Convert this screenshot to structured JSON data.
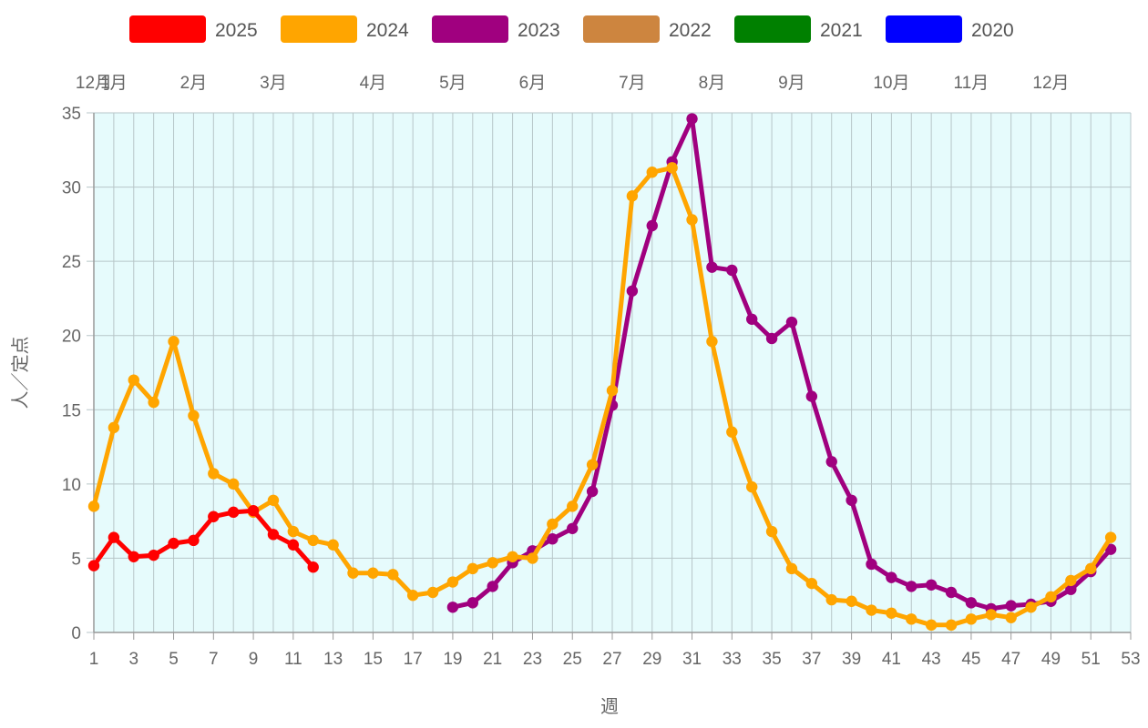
{
  "chart_data": {
    "type": "line",
    "xlabel": "週",
    "ylabel": "人／定点",
    "xlim": [
      1,
      53
    ],
    "ylim": [
      0,
      35
    ],
    "x_ticks": [
      1,
      3,
      5,
      7,
      9,
      11,
      13,
      15,
      17,
      19,
      21,
      23,
      25,
      27,
      29,
      31,
      33,
      35,
      37,
      39,
      41,
      43,
      45,
      47,
      49,
      51,
      53
    ],
    "y_ticks": [
      0,
      5,
      10,
      15,
      20,
      25,
      30,
      35
    ],
    "month_labels": [
      {
        "label": "12月",
        "week": 1
      },
      {
        "label": "1月",
        "week": 2
      },
      {
        "label": "2月",
        "week": 6
      },
      {
        "label": "3月",
        "week": 10
      },
      {
        "label": "4月",
        "week": 15
      },
      {
        "label": "5月",
        "week": 19
      },
      {
        "label": "6月",
        "week": 23
      },
      {
        "label": "7月",
        "week": 28
      },
      {
        "label": "8月",
        "week": 32
      },
      {
        "label": "9月",
        "week": 36
      },
      {
        "label": "10月",
        "week": 41
      },
      {
        "label": "11月",
        "week": 45
      },
      {
        "label": "12月",
        "week": 49
      }
    ],
    "legend_position": "top",
    "grid": true,
    "plot_background": "#e6fbfc",
    "series": [
      {
        "name": "2025",
        "color": "#ff0000",
        "x_start": 1,
        "values": [
          4.5,
          6.4,
          5.1,
          5.2,
          6.0,
          6.2,
          7.8,
          8.1,
          8.2,
          6.6,
          5.9,
          4.4
        ]
      },
      {
        "name": "2024",
        "color": "#ffa500",
        "x_start": 1,
        "values": [
          8.5,
          13.8,
          17.0,
          15.5,
          19.6,
          14.6,
          10.7,
          10.0,
          8.1,
          8.9,
          6.8,
          6.2,
          5.9,
          4.0,
          4.0,
          3.9,
          2.5,
          2.7,
          3.4,
          4.3,
          4.7,
          5.1,
          5.0,
          7.3,
          8.5,
          11.3,
          16.3,
          29.4,
          31.0,
          31.3,
          27.8,
          19.6,
          13.5,
          9.8,
          6.8,
          4.3,
          3.3,
          2.2,
          2.1,
          1.5,
          1.3,
          0.9,
          0.5,
          0.5,
          0.9,
          1.2,
          1.0,
          1.7,
          2.4,
          3.5,
          4.3,
          6.4
        ]
      },
      {
        "name": "2023",
        "color": "#a0007f",
        "x_start": 19,
        "values": [
          1.7,
          2.0,
          3.1,
          4.7,
          5.5,
          6.3,
          7.0,
          9.5,
          15.3,
          23.0,
          27.4,
          31.7,
          34.6,
          24.6,
          24.4,
          21.1,
          19.8,
          20.9,
          15.9,
          11.5,
          8.9,
          4.6,
          3.7,
          3.1,
          3.2,
          2.7,
          2.0,
          1.6,
          1.8,
          1.9,
          2.1,
          2.9,
          4.1,
          5.6
        ]
      },
      {
        "name": "2022",
        "color": "#cd853f",
        "values": []
      },
      {
        "name": "2021",
        "color": "#008000",
        "values": []
      },
      {
        "name": "2020",
        "color": "#0000ff",
        "values": []
      }
    ]
  }
}
